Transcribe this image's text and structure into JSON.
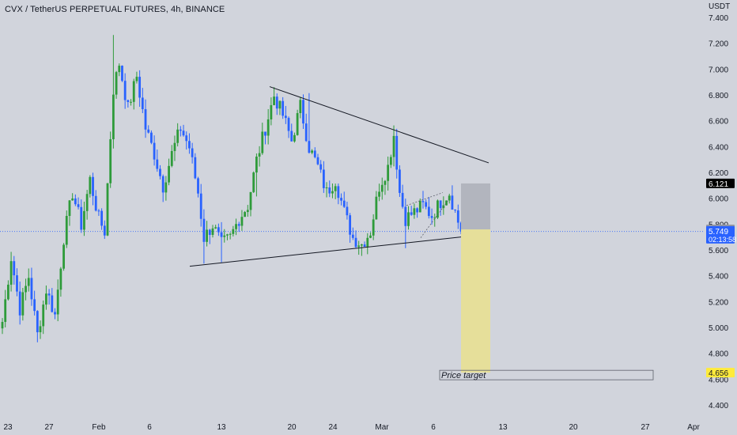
{
  "title": "CVX / TetherUS PERPETUAL FUTURES, 4h, BINANCE",
  "currency_label": "USDT",
  "colors": {
    "background": "#d1d4dc",
    "up": "#2e9b3a",
    "down": "#2962ff",
    "trendline": "#131722",
    "stop_zone": "#b2b5be",
    "target_zone": "#e6df9a",
    "current_price_bg": "#2962ff",
    "target_price_bg": "#ffeb3b",
    "stop_price_bg": "#000000",
    "entry_price_bg": "#9598a1"
  },
  "chart_data": {
    "type": "candlestick",
    "title": "CVX / TetherUS PERPETUAL FUTURES, 4h, BINANCE",
    "ylabel": "USDT",
    "ylim": [
      4.32,
      7.48
    ],
    "y_ticks": [
      "7.400",
      "7.200",
      "7.000",
      "6.800",
      "6.600",
      "6.400",
      "6.200",
      "6.000",
      "5.800",
      "5.600",
      "5.400",
      "5.200",
      "5.000",
      "4.800",
      "4.600",
      "4.400"
    ],
    "x_ticks": [
      "23",
      "27",
      "Feb",
      "6",
      "13",
      "20",
      "24",
      "Mar",
      "6",
      "13",
      "20",
      "27",
      "Apr"
    ],
    "price_path": [
      [
        0,
        5.05
      ],
      [
        3,
        5.55
      ],
      [
        6,
        5.15
      ],
      [
        9,
        5.4
      ],
      [
        12,
        4.95
      ],
      [
        15,
        5.3
      ],
      [
        18,
        5.1
      ],
      [
        21,
        5.7
      ],
      [
        24,
        6.05
      ],
      [
        27,
        5.8
      ],
      [
        30,
        6.15
      ],
      [
        33,
        5.85
      ],
      [
        35,
        5.75
      ],
      [
        38,
        6.85
      ],
      [
        40,
        7.05
      ],
      [
        43,
        6.7
      ],
      [
        46,
        6.95
      ],
      [
        49,
        6.55
      ],
      [
        52,
        6.35
      ],
      [
        55,
        6.1
      ],
      [
        58,
        6.35
      ],
      [
        61,
        6.55
      ],
      [
        64,
        6.4
      ],
      [
        67,
        6.05
      ],
      [
        69,
        5.7
      ],
      [
        72,
        5.8
      ],
      [
        75,
        5.65
      ],
      [
        78,
        5.7
      ],
      [
        81,
        5.85
      ],
      [
        84,
        5.95
      ],
      [
        87,
        6.3
      ],
      [
        90,
        6.55
      ],
      [
        93,
        6.8
      ],
      [
        96,
        6.65
      ],
      [
        99,
        6.45
      ],
      [
        102,
        6.72
      ],
      [
        105,
        6.4
      ],
      [
        108,
        6.25
      ],
      [
        111,
        6.05
      ],
      [
        114,
        6.15
      ],
      [
        117,
        5.9
      ],
      [
        120,
        5.7
      ],
      [
        123,
        5.65
      ],
      [
        126,
        5.75
      ],
      [
        129,
        6.1
      ],
      [
        132,
        6.25
      ],
      [
        134,
        6.5
      ],
      [
        136,
        6.05
      ],
      [
        138,
        5.85
      ],
      [
        141,
        5.9
      ],
      [
        144,
        5.95
      ],
      [
        147,
        5.87
      ],
      [
        150,
        5.98
      ],
      [
        153,
        6.05
      ],
      [
        155,
        5.9
      ],
      [
        157,
        5.749
      ]
    ],
    "wicks": [
      {
        "i": 38,
        "high": 7.27
      },
      {
        "i": 69,
        "low": 5.5
      },
      {
        "i": 75,
        "low": 5.51
      },
      {
        "i": 123,
        "low": 5.56
      },
      {
        "i": 138,
        "low": 5.62
      },
      {
        "i": 87,
        "low": 6.02
      },
      {
        "i": 134,
        "high": 6.57
      },
      {
        "i": 105,
        "high": 6.82
      }
    ],
    "candle_count": 158,
    "start_label": "23",
    "trendlines": [
      {
        "name": "upper-triangle-line",
        "from_price": 6.87,
        "to_price": 6.28
      },
      {
        "name": "lower-triangle-line",
        "from_price": 5.48,
        "to_price": 5.72
      }
    ],
    "position": {
      "entry": 5.765,
      "stop": 6.121,
      "target": 4.656,
      "current": 5.749,
      "countdown": "02:13:58"
    },
    "annotation": "Price target",
    "price_labels": {
      "stop": "6.121",
      "entry": "5.765",
      "current": "5.749",
      "target": "4.656"
    }
  }
}
